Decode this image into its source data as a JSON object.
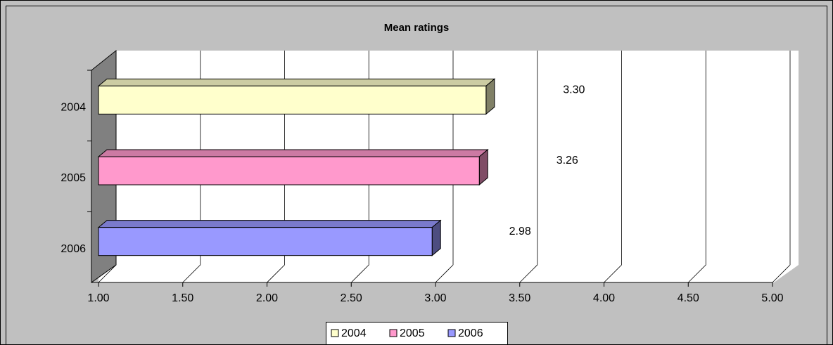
{
  "chart_data": {
    "type": "bar",
    "orientation": "horizontal",
    "title": "Mean ratings",
    "categories": [
      "2004",
      "2005",
      "2006"
    ],
    "series": [
      {
        "name": "2004",
        "color": "#ffffcc",
        "values": [
          3.3,
          null,
          null
        ],
        "value_labels": [
          "3.30",
          null,
          null
        ]
      },
      {
        "name": "2005",
        "color": "#ff99cc",
        "values": [
          null,
          3.26,
          null
        ],
        "value_labels": [
          null,
          "3.26",
          null
        ]
      },
      {
        "name": "2006",
        "color": "#9999ff",
        "values": [
          null,
          null,
          2.98
        ],
        "value_labels": [
          null,
          null,
          "2.98"
        ]
      }
    ],
    "xlim": [
      1,
      5
    ],
    "xticks": [
      {
        "value": 1,
        "label": "1.00"
      },
      {
        "value": 1.5,
        "label": "1.50"
      },
      {
        "value": 2,
        "label": "2.00"
      },
      {
        "value": 2.5,
        "label": "2.50"
      },
      {
        "value": 3,
        "label": "3.00"
      },
      {
        "value": 3.5,
        "label": "3.50"
      },
      {
        "value": 4,
        "label": "4.00"
      },
      {
        "value": 4.5,
        "label": "4.50"
      },
      {
        "value": 5,
        "label": "5.00"
      }
    ],
    "grid": true,
    "legend": "bottom"
  }
}
